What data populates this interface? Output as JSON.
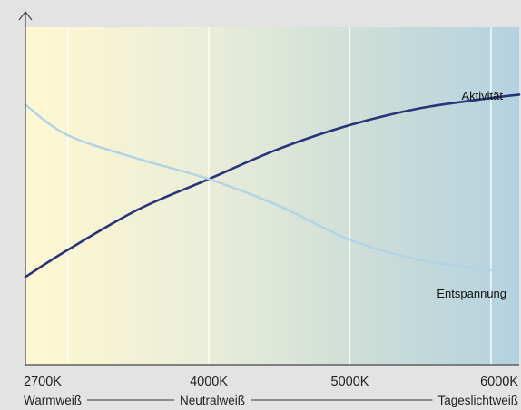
{
  "chart_data": {
    "type": "line",
    "x_ticks": [
      {
        "value": 2700,
        "label": "2700K"
      },
      {
        "value": 4000,
        "label": "4000K"
      },
      {
        "value": 5000,
        "label": "5000K"
      },
      {
        "value": 6000,
        "label": "6000K"
      }
    ],
    "bands": [
      "Warmweiß",
      "Neutralweiß",
      "Tageslichtweiß"
    ],
    "xlim": [
      2700,
      6200
    ],
    "ylim": [
      0,
      1
    ],
    "grid_x": [
      3000,
      4000,
      5000,
      6000
    ],
    "background_gradient": [
      "#fff8d2",
      "#ebeed8",
      "#cadcd8",
      "#b3d2e0"
    ],
    "series": [
      {
        "name": "Aktivität",
        "color": "#27347a",
        "points": [
          [
            2700,
            0.26
          ],
          [
            3000,
            0.34
          ],
          [
            3500,
            0.46
          ],
          [
            4000,
            0.55
          ],
          [
            4500,
            0.64
          ],
          [
            5000,
            0.71
          ],
          [
            5500,
            0.76
          ],
          [
            6000,
            0.79
          ],
          [
            6200,
            0.8
          ]
        ]
      },
      {
        "name": "Entspannung",
        "color": "#b2d2e6",
        "points": [
          [
            2700,
            0.77
          ],
          [
            3000,
            0.68
          ],
          [
            3500,
            0.61
          ],
          [
            4000,
            0.55
          ],
          [
            4500,
            0.47
          ],
          [
            5000,
            0.37
          ],
          [
            5500,
            0.31
          ],
          [
            6000,
            0.28
          ]
        ]
      }
    ]
  }
}
